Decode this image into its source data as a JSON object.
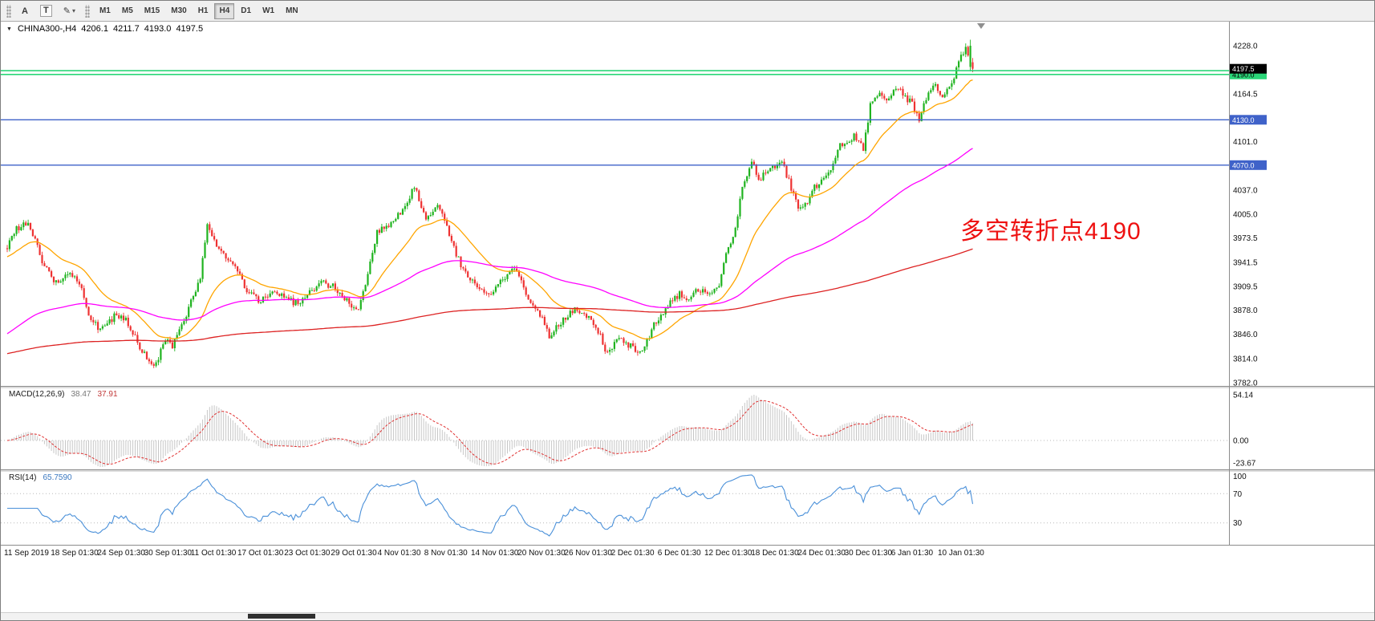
{
  "icons": {
    "collapse_arrow": "▼",
    "pencil": "✎",
    "dropdown": "▾"
  },
  "toolbar": {
    "tools": [
      {
        "name": "font-tool",
        "glyph": "A",
        "boxed": false,
        "dropdown": false
      },
      {
        "name": "text-label-tool",
        "glyph": "T",
        "boxed": true,
        "dropdown": false
      },
      {
        "name": "drawing-tool",
        "glyph": "✎",
        "boxed": false,
        "dropdown": true
      }
    ],
    "timeframes": [
      {
        "label": "M1",
        "active": false
      },
      {
        "label": "M5",
        "active": false
      },
      {
        "label": "M15",
        "active": false
      },
      {
        "label": "M30",
        "active": false
      },
      {
        "label": "H1",
        "active": false
      },
      {
        "label": "H4",
        "active": true
      },
      {
        "label": "D1",
        "active": false
      },
      {
        "label": "W1",
        "active": false
      },
      {
        "label": "MN",
        "active": false
      }
    ]
  },
  "chart": {
    "header": {
      "symbol": "CHINA300-,H4",
      "open": "4206.1",
      "high": "4211.7",
      "low": "4193.0",
      "close": "4197.5"
    },
    "annotation": {
      "text": "多空转折点4190",
      "color": "#ee1111"
    },
    "colors": {
      "candle_up": "#1fb31f",
      "candle_down": "#ee3232",
      "ma_fast": "#ffa500",
      "ma_mid": "#ff00ff",
      "ma_slow": "#dd2222",
      "macd_hist": "#c6c6c6",
      "macd_signal": "#e03030",
      "rsi": "#4a90d9",
      "line_green": "#2bd678",
      "line_blue": "#3f62c9"
    },
    "horizontal_lines": [
      {
        "price": 4195.0,
        "color_key": "line_green",
        "width": 1.6
      },
      {
        "price": 4190.0,
        "color_key": "line_green",
        "width": 1.6
      },
      {
        "price": 4130.0,
        "color_key": "line_blue",
        "width": 1.4
      },
      {
        "price": 4070.0,
        "color_key": "line_blue",
        "width": 1.4
      }
    ],
    "price_axis": {
      "ticks": [
        "4228.0",
        "4164.5",
        "4101.0",
        "4037.0",
        "4005.0",
        "3973.5",
        "3941.5",
        "3909.5",
        "3878.0",
        "3846.0",
        "3814.0",
        "3782.0"
      ],
      "tags": [
        {
          "label": "4197.5",
          "price": 4197.5,
          "bg": "#000000",
          "fg": "#ffffff",
          "name": "current-price-tag"
        },
        {
          "label": "4190.0",
          "price": 4190.0,
          "bg": "#2bd678",
          "fg": "#000000",
          "name": "line-price-tag-4190"
        },
        {
          "label": "4130.0",
          "price": 4130.0,
          "bg": "#3f62c9",
          "fg": "#ffffff",
          "name": "line-price-tag-4130"
        },
        {
          "label": "4070.0",
          "price": 4070.0,
          "bg": "#3f62c9",
          "fg": "#ffffff",
          "name": "line-price-tag-4070"
        }
      ]
    },
    "x_axis_labels": [
      "11 Sep 2019",
      "18 Sep 01:30",
      "24 Sep 01:30",
      "30 Sep 01:30",
      "11 Oct 01:30",
      "17 Oct 01:30",
      "23 Oct 01:30",
      "29 Oct 01:30",
      "4 Nov 01:30",
      "8 Nov 01:30",
      "14 Nov 01:30",
      "20 Nov 01:30",
      "26 Nov 01:30",
      "2 Dec 01:30",
      "6 Dec 01:30",
      "12 Dec 01:30",
      "18 Dec 01:30",
      "24 Dec 01:30",
      "30 Dec 01:30",
      "6 Jan 01:30",
      "10 Jan 01:30"
    ]
  },
  "indicator_panels": {
    "macd": {
      "label": "MACD(12,26,9)",
      "value_main": "38.47",
      "value_signal": "37.91",
      "scale_labels": [
        "54.14",
        "0.00",
        "-23.67"
      ]
    },
    "rsi": {
      "label": "RSI(14)",
      "value": "65.7590",
      "scale_labels": [
        "100",
        "70",
        "30"
      ],
      "levels": [
        70,
        30
      ]
    }
  },
  "chart_data": {
    "type": "candlestick",
    "symbol": "CHINA300-",
    "timeframe": "H4",
    "ylim": [
      3777,
      4260
    ],
    "spike_high": 4236,
    "candle_count": 416,
    "last_ohlc": {
      "open": 4206.1,
      "high": 4211.7,
      "low": 4193.0,
      "close": 4197.5
    },
    "price_path": [
      [
        0,
        3960
      ],
      [
        4,
        3985
      ],
      [
        9,
        3995
      ],
      [
        16,
        3935
      ],
      [
        21,
        3915
      ],
      [
        27,
        3930
      ],
      [
        32,
        3905
      ],
      [
        35,
        3870
      ],
      [
        40,
        3850
      ],
      [
        46,
        3870
      ],
      [
        51,
        3865
      ],
      [
        56,
        3835
      ],
      [
        63,
        3800
      ],
      [
        68,
        3840
      ],
      [
        71,
        3830
      ],
      [
        78,
        3880
      ],
      [
        83,
        3920
      ],
      [
        86,
        3990
      ],
      [
        90,
        3960
      ],
      [
        96,
        3945
      ],
      [
        104,
        3900
      ],
      [
        109,
        3890
      ],
      [
        114,
        3905
      ],
      [
        120,
        3895
      ],
      [
        125,
        3885
      ],
      [
        130,
        3900
      ],
      [
        135,
        3915
      ],
      [
        140,
        3910
      ],
      [
        146,
        3890
      ],
      [
        151,
        3880
      ],
      [
        154,
        3910
      ],
      [
        159,
        3980
      ],
      [
        164,
        3990
      ],
      [
        170,
        4010
      ],
      [
        175,
        4040
      ],
      [
        180,
        4000
      ],
      [
        185,
        4015
      ],
      [
        189,
        3990
      ],
      [
        192,
        3960
      ],
      [
        197,
        3925
      ],
      [
        202,
        3910
      ],
      [
        208,
        3900
      ],
      [
        213,
        3920
      ],
      [
        218,
        3935
      ],
      [
        223,
        3900
      ],
      [
        228,
        3880
      ],
      [
        233,
        3845
      ],
      [
        239,
        3865
      ],
      [
        244,
        3880
      ],
      [
        249,
        3870
      ],
      [
        254,
        3850
      ],
      [
        258,
        3820
      ],
      [
        263,
        3840
      ],
      [
        268,
        3830
      ],
      [
        273,
        3820
      ],
      [
        278,
        3860
      ],
      [
        283,
        3880
      ],
      [
        289,
        3900
      ],
      [
        292,
        3890
      ],
      [
        297,
        3905
      ],
      [
        302,
        3900
      ],
      [
        306,
        3910
      ],
      [
        309,
        3950
      ],
      [
        313,
        3985
      ],
      [
        316,
        4040
      ],
      [
        320,
        4075
      ],
      [
        323,
        4050
      ],
      [
        327,
        4065
      ],
      [
        330,
        4070
      ],
      [
        333,
        4075
      ],
      [
        337,
        4040
      ],
      [
        340,
        4012
      ],
      [
        344,
        4020
      ],
      [
        347,
        4040
      ],
      [
        351,
        4050
      ],
      [
        354,
        4065
      ],
      [
        358,
        4095
      ],
      [
        361,
        4100
      ],
      [
        364,
        4110
      ],
      [
        368,
        4090
      ],
      [
        371,
        4150
      ],
      [
        375,
        4170
      ],
      [
        378,
        4155
      ],
      [
        382,
        4170
      ],
      [
        385,
        4165
      ],
      [
        389,
        4150
      ],
      [
        392,
        4130
      ],
      [
        395,
        4160
      ],
      [
        399,
        4175
      ],
      [
        402,
        4160
      ],
      [
        406,
        4180
      ],
      [
        409,
        4205
      ],
      [
        412,
        4225
      ],
      [
        415,
        4197.5
      ]
    ],
    "moving_averages": [
      {
        "name": "ma-fast",
        "period": 28,
        "history_seed": 3948,
        "color_key": "ma_fast"
      },
      {
        "name": "ma-mid",
        "period": 120,
        "history_seed": 3845,
        "color_key": "ma_mid"
      },
      {
        "name": "ma-slow",
        "period": 500,
        "history_seed": 3820,
        "color_key": "ma_slow"
      }
    ],
    "indicators": [
      {
        "type": "MACD",
        "fast": 12,
        "slow": 26,
        "signal": 9,
        "last_main": 38.47,
        "last_signal": 37.91,
        "scale_max": 54.14,
        "scale_min": -23.67
      },
      {
        "type": "RSI",
        "period": 14,
        "last_value": 65.759,
        "levels": [
          70,
          30
        ]
      }
    ],
    "support_resistance_levels": [
      4195.0,
      4190.0,
      4130.0,
      4070.0
    ]
  }
}
